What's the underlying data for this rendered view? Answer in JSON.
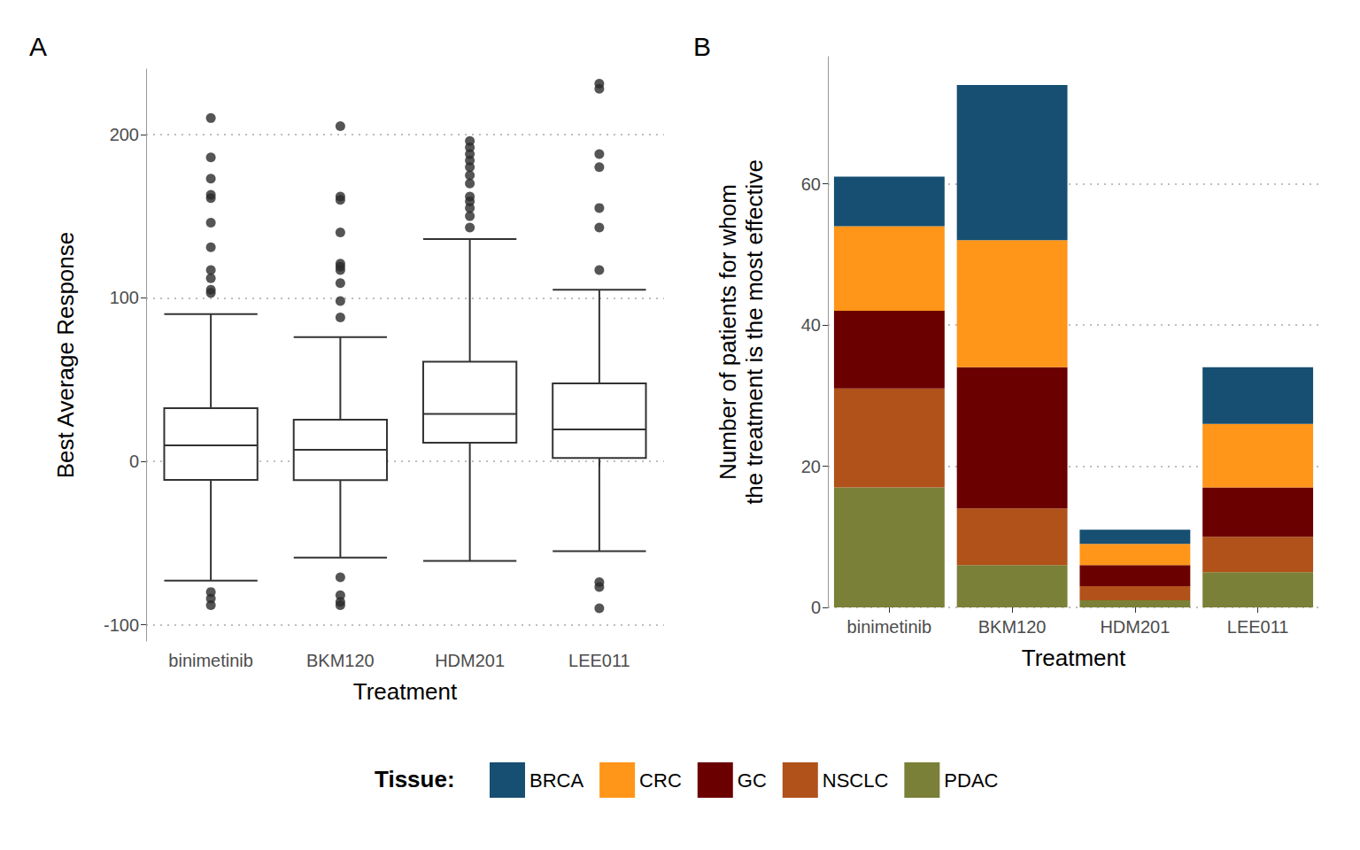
{
  "chart_data": [
    {
      "type": "boxplot",
      "title": "A",
      "x_label": "Treatment",
      "y_label": "Best Average Response",
      "categories": [
        "binimetinib",
        "BKM120",
        "HDM201",
        "LEE011"
      ],
      "values": [
        [
          -73,
          -11.4,
          9.8,
          32.5,
          90
        ],
        [
          -59,
          -11.5,
          7,
          25.5,
          76
        ],
        [
          -61,
          11.4,
          29,
          61,
          136
        ],
        [
          -55,
          2,
          19.5,
          47.7,
          105
        ]
      ],
      "outliers": [
        [
          210,
          186,
          173,
          163,
          161,
          146,
          131,
          117,
          112,
          105,
          103,
          -80,
          -84,
          -88
        ],
        [
          205,
          162,
          160,
          140,
          121,
          119,
          117,
          109,
          98,
          88,
          -71,
          -82,
          -86,
          -88
        ],
        [
          196,
          192,
          188,
          184,
          180,
          175,
          170,
          162,
          159,
          155,
          150,
          143
        ],
        [
          231,
          228,
          188,
          180,
          155,
          143,
          117,
          -74,
          -77,
          -90
        ]
      ],
      "ylim": [
        -110,
        240
      ],
      "yticks": [
        -100,
        0,
        100,
        200
      ],
      "grid": true
    },
    {
      "type": "bar",
      "title": "B",
      "x_label": "Treatment",
      "y_label": "Number of patients for whom\nthe treatment is the most effective",
      "categories": [
        "binimetinib",
        "BKM120",
        "HDM201",
        "LEE011"
      ],
      "series": [
        {
          "name": "BRCA",
          "color": "#174f72",
          "values": [
            7,
            22,
            2,
            8
          ]
        },
        {
          "name": "CRC",
          "color": "#ff9519",
          "values": [
            12,
            18,
            3,
            9
          ]
        },
        {
          "name": "GC",
          "color": "#6b0000",
          "values": [
            11,
            20,
            3,
            7
          ]
        },
        {
          "name": "NSCLC",
          "color": "#b0521a",
          "values": [
            14,
            8,
            2,
            5
          ]
        },
        {
          "name": "PDAC",
          "color": "#7a8038",
          "values": [
            17,
            6,
            1,
            5
          ]
        }
      ],
      "stacked": true,
      "ylim": [
        0,
        78
      ],
      "yticks": [
        0,
        20,
        40,
        60
      ],
      "grid": true,
      "legend": "bottom",
      "legend_title": "Tissue:"
    }
  ]
}
